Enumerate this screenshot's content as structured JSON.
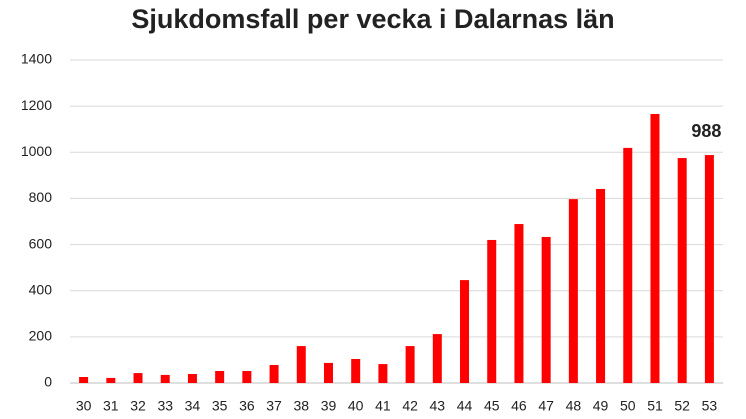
{
  "chart_data": {
    "type": "bar",
    "title": "Sjukdomsfall per vecka i Dalarnas län",
    "categories": [
      "30",
      "31",
      "32",
      "33",
      "34",
      "35",
      "36",
      "37",
      "38",
      "39",
      "40",
      "41",
      "42",
      "43",
      "44",
      "45",
      "46",
      "47",
      "48",
      "49",
      "50",
      "51",
      "52",
      "53"
    ],
    "values": [
      26,
      22,
      43,
      35,
      39,
      52,
      52,
      78,
      160,
      87,
      104,
      82,
      160,
      212,
      446,
      620,
      689,
      633,
      797,
      841,
      1019,
      1166,
      975,
      988
    ],
    "value_labels": [
      null,
      null,
      null,
      null,
      null,
      null,
      null,
      null,
      null,
      null,
      null,
      null,
      null,
      null,
      null,
      null,
      null,
      null,
      null,
      null,
      null,
      null,
      null,
      "988"
    ],
    "color": "#ff0000",
    "ylim": [
      0,
      1400
    ],
    "yticks": [
      0,
      200,
      400,
      600,
      800,
      1000,
      1200,
      1400
    ],
    "grid": true
  }
}
